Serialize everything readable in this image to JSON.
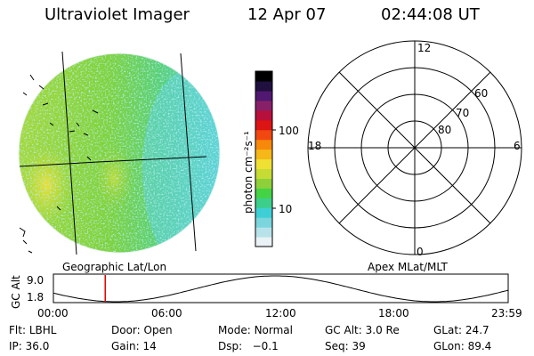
{
  "header": {
    "instrument": "Ultraviolet Imager",
    "date": "12 Apr 07",
    "time": "02:44:08 UT"
  },
  "colorbar": {
    "unit_label": "photon cm⁻²s⁻¹",
    "ticks": [
      "100",
      "10"
    ],
    "colors": [
      "#eaf2f6",
      "#b8e2ea",
      "#7ad6dc",
      "#3ecfd6",
      "#3ccf8c",
      "#44d344",
      "#8ed03a",
      "#c6dc34",
      "#f0e034",
      "#f6b818",
      "#f6880c",
      "#f04810",
      "#dc1414",
      "#b8103c",
      "#882068",
      "#501870",
      "#201040",
      "#000000"
    ]
  },
  "polar": {
    "lat_labels": [
      "80",
      "70",
      "60"
    ],
    "mlt_labels": {
      "top": "12",
      "left": "18",
      "right": "6",
      "bottom": "0"
    }
  },
  "map_labels": {
    "left": "Geographic Lat/Lon",
    "right": "Apex MLat/MLT"
  },
  "timeline": {
    "ylabel": "GC Alt",
    "y_ticks": [
      "9.0",
      "1.8"
    ],
    "x_ticks": [
      "00:00",
      "06:00",
      "12:00",
      "18:00",
      "23:59"
    ],
    "current_marker_hours": 2.735
  },
  "info": {
    "filter_label": "Flt:",
    "filter": "LBHL",
    "ip_label": "IP:",
    "ip": "36.0",
    "door_label": "Door:",
    "door": "Open",
    "gain_label": "Gain:",
    "gain": "14",
    "mode_label": "Mode:",
    "mode": "Normal",
    "dsp_label": "Dsp:",
    "dsp": "−0.1",
    "gcalt_label": "GC Alt:",
    "gcalt": "3.0 Re",
    "seq_label": "Seq:",
    "seq": "39",
    "glat_label": "GLat:",
    "glat": "24.7",
    "glon_label": "GLon:",
    "glon": "89.4"
  }
}
